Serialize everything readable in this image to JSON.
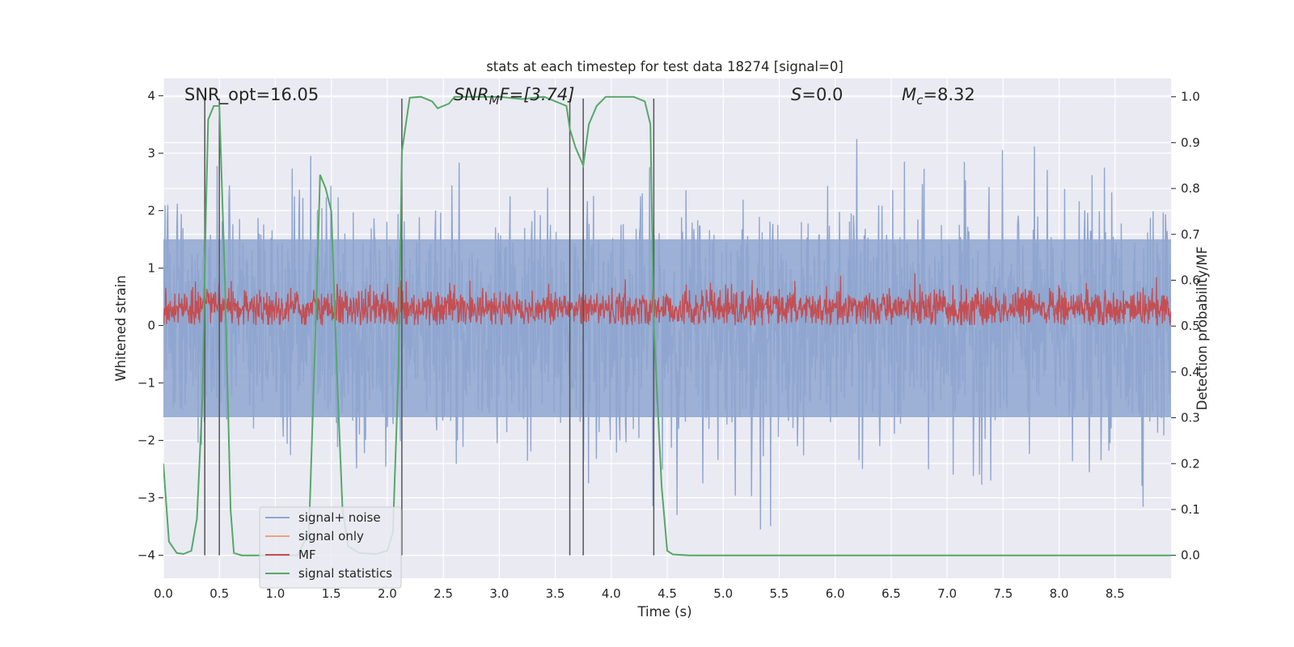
{
  "chart_data": {
    "type": "line",
    "title": "stats at each timestep for test data 18274 [signal=0]",
    "xlabel": "Time (s)",
    "ylabel": "Whitened strain",
    "y2label": "Detection probability/MF",
    "xlim": [
      0.0,
      9.0
    ],
    "ylim": [
      -4.4,
      4.3
    ],
    "y2lim": [
      -0.05,
      1.04
    ],
    "xticks": [
      0.0,
      0.5,
      1.0,
      1.5,
      2.0,
      2.5,
      3.0,
      3.5,
      4.0,
      4.5,
      5.0,
      5.5,
      6.0,
      6.5,
      7.0,
      7.5,
      8.0,
      8.5
    ],
    "xtick_labels": [
      "0.0",
      "0.5",
      "1.0",
      "1.5",
      "2.0",
      "2.5",
      "3.0",
      "3.5",
      "4.0",
      "4.5",
      "5.0",
      "5.5",
      "6.0",
      "6.5",
      "7.0",
      "7.5",
      "8.0",
      "8.5"
    ],
    "yticks": [
      4,
      3,
      2,
      1,
      0,
      -1,
      -2,
      -3,
      -4
    ],
    "ytick_labels": [
      "4",
      "3",
      "2",
      "1",
      "0",
      "−1",
      "−2",
      "−3",
      "−4"
    ],
    "y2ticks": [
      1.0,
      0.9,
      0.8,
      0.7,
      0.6,
      0.5,
      0.4,
      0.3,
      0.2,
      0.1,
      0.0
    ],
    "y2tick_labels": [
      "1.0",
      "0.9",
      "0.8",
      "0.7",
      "0.6",
      "0.5",
      "0.4",
      "0.3",
      "0.2",
      "0.1",
      "0.0"
    ],
    "series": [
      {
        "name": "signal+ noise",
        "axis": "left",
        "color": "#8fa6d0",
        "description_values": "band approx -2 to 2.5, peaks to about ±3.5",
        "band_low": -1.6,
        "band_high": 1.5,
        "peak_min": -3.8,
        "peak_max": 3.4
      },
      {
        "name": "signal only",
        "axis": "left",
        "color": "#e8a383",
        "values": []
      },
      {
        "name": "MF",
        "axis": "left",
        "color": "#c44e52",
        "band_low": 0.0,
        "band_high": 0.6,
        "peak_max": 1.0
      },
      {
        "name": "signal statistics",
        "axis": "right",
        "color": "#55a868",
        "x": [
          0.0,
          0.05,
          0.12,
          0.18,
          0.25,
          0.3,
          0.35,
          0.38,
          0.4,
          0.45,
          0.5,
          0.55,
          0.6,
          0.63,
          0.7,
          0.8,
          1.0,
          1.2,
          1.3,
          1.36,
          1.4,
          1.45,
          1.5,
          1.55,
          1.6,
          1.65,
          1.75,
          1.9,
          2.0,
          2.05,
          2.1,
          2.13,
          2.2,
          2.3,
          2.4,
          2.45,
          2.5,
          2.55,
          2.6,
          2.65,
          2.7,
          2.8,
          3.0,
          3.2,
          3.4,
          3.5,
          3.6,
          3.63,
          3.68,
          3.75,
          3.8,
          3.87,
          3.95,
          4.1,
          4.2,
          4.3,
          4.35,
          4.38,
          4.45,
          4.5,
          4.55,
          4.7,
          5.0,
          6.0,
          7.0,
          8.0,
          9.0
        ],
        "values": [
          0.2,
          0.03,
          0.005,
          0.003,
          0.01,
          0.08,
          0.35,
          0.75,
          0.95,
          0.98,
          0.98,
          0.6,
          0.1,
          0.005,
          0.0,
          0.0,
          0.0,
          0.0,
          0.05,
          0.5,
          0.83,
          0.8,
          0.75,
          0.4,
          0.1,
          0.02,
          0.005,
          0.003,
          0.01,
          0.05,
          0.4,
          0.88,
          0.998,
          1.0,
          0.99,
          0.975,
          0.98,
          0.985,
          1.0,
          1.0,
          1.0,
          1.0,
          1.0,
          0.995,
          1.0,
          0.99,
          0.98,
          0.93,
          0.89,
          0.85,
          0.94,
          0.98,
          1.0,
          1.0,
          1.0,
          0.99,
          0.94,
          0.5,
          0.15,
          0.01,
          0.002,
          0.0,
          0.0,
          0.0,
          0.0,
          0.0,
          0.0
        ]
      }
    ],
    "vertical_lines_x": [
      0.37,
      0.5,
      2.13,
      3.63,
      3.75,
      4.38
    ],
    "annotations": {
      "snr_opt": "SNR_opt=16.05",
      "snr_mf_main": "SNR",
      "snr_mf_sub": "M",
      "snr_mf_rest": "F=[3.74]",
      "s_main": "S",
      "s_rest": "=0.0",
      "mc_main": "M",
      "mc_sub": "c",
      "mc_rest": "=8.32"
    },
    "legend": {
      "position": "lower-left",
      "entries": [
        "signal+ noise",
        "signal only",
        "MF",
        "signal statistics"
      ]
    },
    "grid": true
  },
  "colors": {
    "plot_background": "#eaeaf2",
    "grid": "#ffffff",
    "vertical_line": "#555555"
  }
}
